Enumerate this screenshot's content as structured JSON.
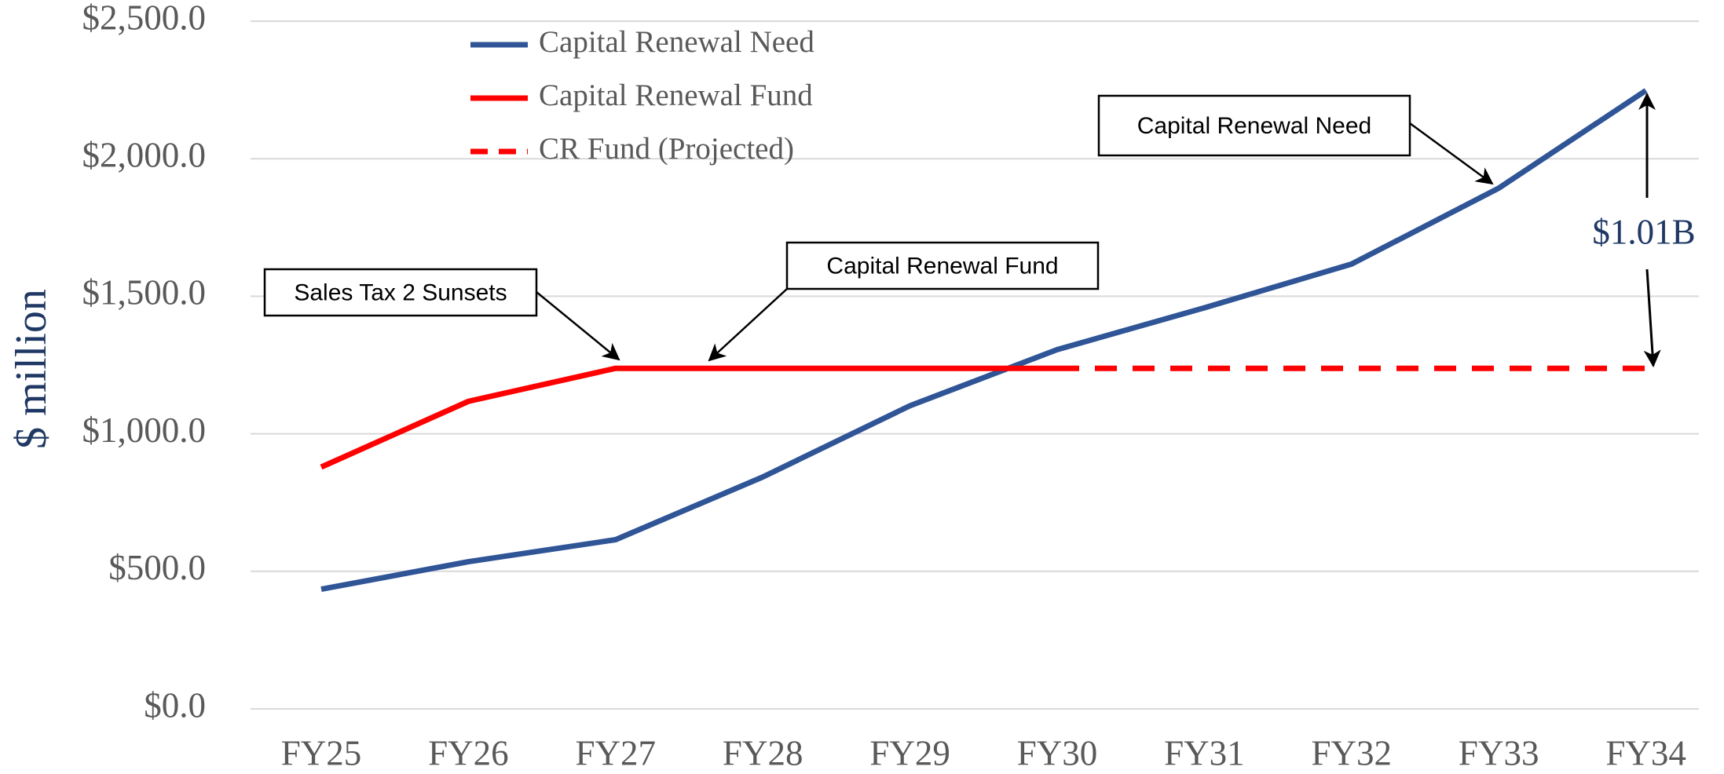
{
  "chart_data": {
    "type": "line",
    "y_label": "$ million",
    "categories": [
      "FY25",
      "FY26",
      "FY27",
      "FY28",
      "FY29",
      "FY30",
      "FY31",
      "FY32",
      "FY33",
      "FY34"
    ],
    "series": [
      {
        "name": "Capital Renewal Need",
        "color": "#2f5597",
        "style": "solid",
        "values": [
          435,
          535,
          615,
          843,
          1102,
          1306,
          1458,
          1617,
          1893,
          2248
        ]
      },
      {
        "name": "Capital Renewal Fund",
        "color": "#ff0000",
        "style": "solid",
        "values": [
          879,
          1118,
          1238,
          1238,
          1238,
          1238,
          null,
          null,
          null,
          null
        ]
      },
      {
        "name": "CR Fund (Projected)",
        "color": "#ff0000",
        "style": "dashed",
        "values": [
          null,
          null,
          null,
          null,
          null,
          1238,
          1238,
          1238,
          1238,
          1238
        ]
      }
    ],
    "ylim": [
      0,
      2500
    ],
    "yticks": [
      {
        "value": 0,
        "label": "$0.0"
      },
      {
        "value": 500,
        "label": "$500.0"
      },
      {
        "value": 1000,
        "label": "$1,000.0"
      },
      {
        "value": 1500,
        "label": "$1,500.0"
      },
      {
        "value": 2000,
        "label": "$2,000.0"
      },
      {
        "value": 2500,
        "label": "$2,500.0"
      }
    ],
    "grid": true,
    "annotations": [
      "Capital Renewal Need",
      "Capital Renewal Fund",
      "Sales Tax 2 Sunsets",
      "$1.01B"
    ]
  }
}
